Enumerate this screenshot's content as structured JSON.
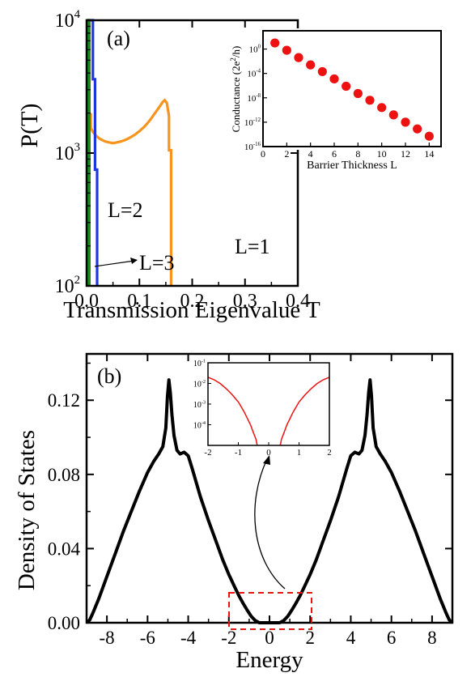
{
  "colors": {
    "L1": "#f7941d",
    "L2": "#1f35e0",
    "L3": "#1b8a1b",
    "inset_dots": "#ee1111",
    "dos_curve": "#000000",
    "inset_b_curve": "#ee1111",
    "dashed_box": "#ee1111"
  },
  "chart_data": [
    {
      "type": "line",
      "panel_label": "(a)",
      "xlabel": "Transmission Eigenvalue T",
      "ylabel": "P(T)",
      "xlim": [
        0.0,
        0.4
      ],
      "ylim": [
        100,
        10000
      ],
      "yscale": "log",
      "xticks": [
        0.0,
        0.1,
        0.2,
        0.3,
        0.4
      ],
      "xtick_labels": [
        "0.0",
        "0.1",
        "0.2",
        "0.3",
        "0.4"
      ],
      "ytick_labels": [
        {
          "base": "10",
          "exp": "2"
        },
        {
          "base": "10",
          "exp": "3"
        },
        {
          "base": "10",
          "exp": "4"
        }
      ],
      "series": [
        {
          "name": "L=1",
          "x": [
            0.0,
            0.004,
            0.004,
            0.008,
            0.008,
            0.012,
            0.016,
            0.02,
            0.024,
            0.028,
            0.032,
            0.036,
            0.04,
            0.044,
            0.048,
            0.052,
            0.056,
            0.06,
            0.064,
            0.068,
            0.072,
            0.076,
            0.08,
            0.084,
            0.088,
            0.092,
            0.096,
            0.1,
            0.104,
            0.108,
            0.112,
            0.116,
            0.12,
            0.124,
            0.128,
            0.132,
            0.136,
            0.14,
            0.144,
            0.148,
            0.152,
            0.156,
            0.156,
            0.16,
            0.16
          ],
          "values": [
            10000,
            10000,
            1950,
            1950,
            1550,
            1440,
            1380,
            1330,
            1290,
            1260,
            1240,
            1220,
            1210,
            1200,
            1190,
            1190,
            1200,
            1210,
            1220,
            1235,
            1250,
            1270,
            1295,
            1320,
            1350,
            1380,
            1420,
            1460,
            1510,
            1560,
            1620,
            1690,
            1770,
            1860,
            1960,
            2060,
            2170,
            2290,
            2420,
            2500,
            2380,
            1900,
            1050,
            1050,
            100
          ]
        },
        {
          "name": "L=2",
          "x": [
            0.005,
            0.005,
            0.012,
            0.012,
            0.016,
            0.016,
            0.02,
            0.02
          ],
          "values": [
            100,
            10000,
            10000,
            3600,
            3600,
            750,
            750,
            100
          ]
        },
        {
          "name": "L=3",
          "x": [
            0.002,
            0.002,
            0.005,
            0.005
          ],
          "values": [
            100,
            10000,
            10000,
            100
          ]
        }
      ],
      "annotations": [
        "L=1",
        "L=2",
        "L=3"
      ]
    },
    {
      "type": "scatter",
      "xlabel": "Barrier Thickness L",
      "ylabel": "Conductance (2e²/h)",
      "ylabel_parts": [
        "Conductance (2e",
        "2",
        "/h)"
      ],
      "xlim": [
        0,
        15
      ],
      "ylim_exp": [
        -16,
        3
      ],
      "yscale": "log",
      "xtick_labels": [
        "0",
        "2",
        "4",
        "6",
        "8",
        "10",
        "12",
        "14"
      ],
      "ytick_labels": [
        {
          "base": "10",
          "exp": "0"
        },
        {
          "base": "10",
          "exp": "-4"
        },
        {
          "base": "10",
          "exp": "-8"
        },
        {
          "base": "10",
          "exp": "-12"
        },
        {
          "base": "10",
          "exp": "-16"
        }
      ],
      "x": [
        1,
        2,
        3,
        4,
        5,
        6,
        7,
        8,
        9,
        10,
        11,
        12,
        13,
        14
      ],
      "log10_values": [
        1.0,
        -0.2,
        -1.4,
        -2.6,
        -3.7,
        -4.9,
        -6.1,
        -7.3,
        -8.4,
        -9.6,
        -10.8,
        -12.0,
        -13.1,
        -14.3
      ]
    },
    {
      "type": "line",
      "panel_label": "(b)",
      "xlabel": "Energy",
      "ylabel": "Density of States",
      "xlim": [
        -9,
        9
      ],
      "ylim": [
        0,
        0.145
      ],
      "xtick_labels": [
        "-8",
        "-6",
        "-4",
        "-2",
        "0",
        "2",
        "4",
        "6",
        "8"
      ],
      "ytick_labels": [
        "0.00",
        "0.04",
        "0.08",
        "0.12"
      ],
      "x_right_half": [
        0.0,
        0.3,
        0.5,
        0.7,
        0.9,
        1.1,
        1.3,
        1.5,
        1.7,
        2.0,
        2.3,
        2.6,
        3.0,
        3.4,
        3.8,
        4.0,
        4.2,
        4.4,
        4.55,
        4.7,
        4.8,
        4.88,
        4.95,
        5.02,
        5.1,
        5.25,
        5.45,
        5.7,
        6.0,
        6.4,
        6.8,
        7.2,
        7.6,
        8.0,
        8.4,
        8.7,
        8.85,
        9.0
      ],
      "values_right_half": [
        0.0,
        0.0,
        0.0,
        0.0012,
        0.0035,
        0.0068,
        0.0105,
        0.0145,
        0.019,
        0.026,
        0.034,
        0.043,
        0.055,
        0.068,
        0.083,
        0.09,
        0.092,
        0.091,
        0.093,
        0.101,
        0.112,
        0.124,
        0.131,
        0.122,
        0.105,
        0.095,
        0.091,
        0.087,
        0.081,
        0.071,
        0.06,
        0.049,
        0.037,
        0.025,
        0.013,
        0.005,
        0.0015,
        0.0
      ],
      "symmetric": true
    },
    {
      "type": "line",
      "xlim": [
        -2,
        2
      ],
      "ylim_exp": [
        -5,
        -1
      ],
      "yscale": "log",
      "xtick_labels": [
        "-2",
        "-1",
        "0",
        "1",
        "2"
      ],
      "ytick_labels": [
        {
          "base": "10",
          "exp": "-1"
        },
        {
          "base": "10",
          "exp": "-2"
        },
        {
          "base": "10",
          "exp": "-3"
        },
        {
          "base": "10",
          "exp": "-4"
        }
      ],
      "x_right_half": [
        0.38,
        0.42,
        0.5,
        0.6,
        0.7,
        0.8,
        0.9,
        1.0,
        1.2,
        1.4,
        1.6,
        1.8,
        2.0
      ],
      "log10_values_right_half": [
        -5.0,
        -4.7,
        -4.4,
        -4.0,
        -3.7,
        -3.4,
        -3.15,
        -2.9,
        -2.55,
        -2.25,
        -2.0,
        -1.82,
        -1.7
      ],
      "symmetric": true
    }
  ]
}
